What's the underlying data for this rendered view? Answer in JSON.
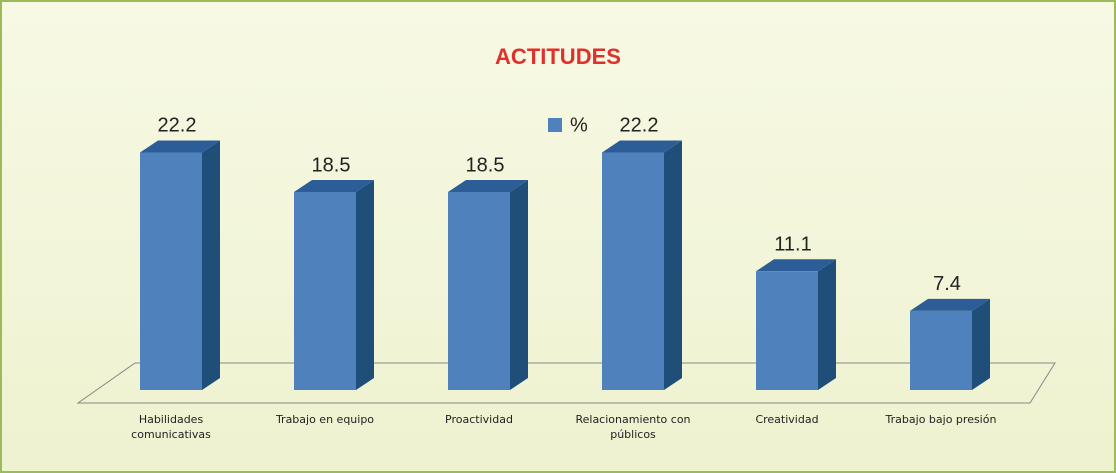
{
  "chart_data": {
    "type": "bar3d",
    "title": "ACTITUDES",
    "categories": [
      "Habilidades comunicativas",
      "Trabajo en equipo",
      "Proactividad",
      "Relacionamiento con públicos",
      "Creatividad",
      "Trabajo bajo presión"
    ],
    "series": [
      {
        "name": "%",
        "color": "#4f81bd",
        "values": [
          22.2,
          18.5,
          18.5,
          22.2,
          11.1,
          7.4
        ]
      }
    ],
    "legend": "top"
  }
}
